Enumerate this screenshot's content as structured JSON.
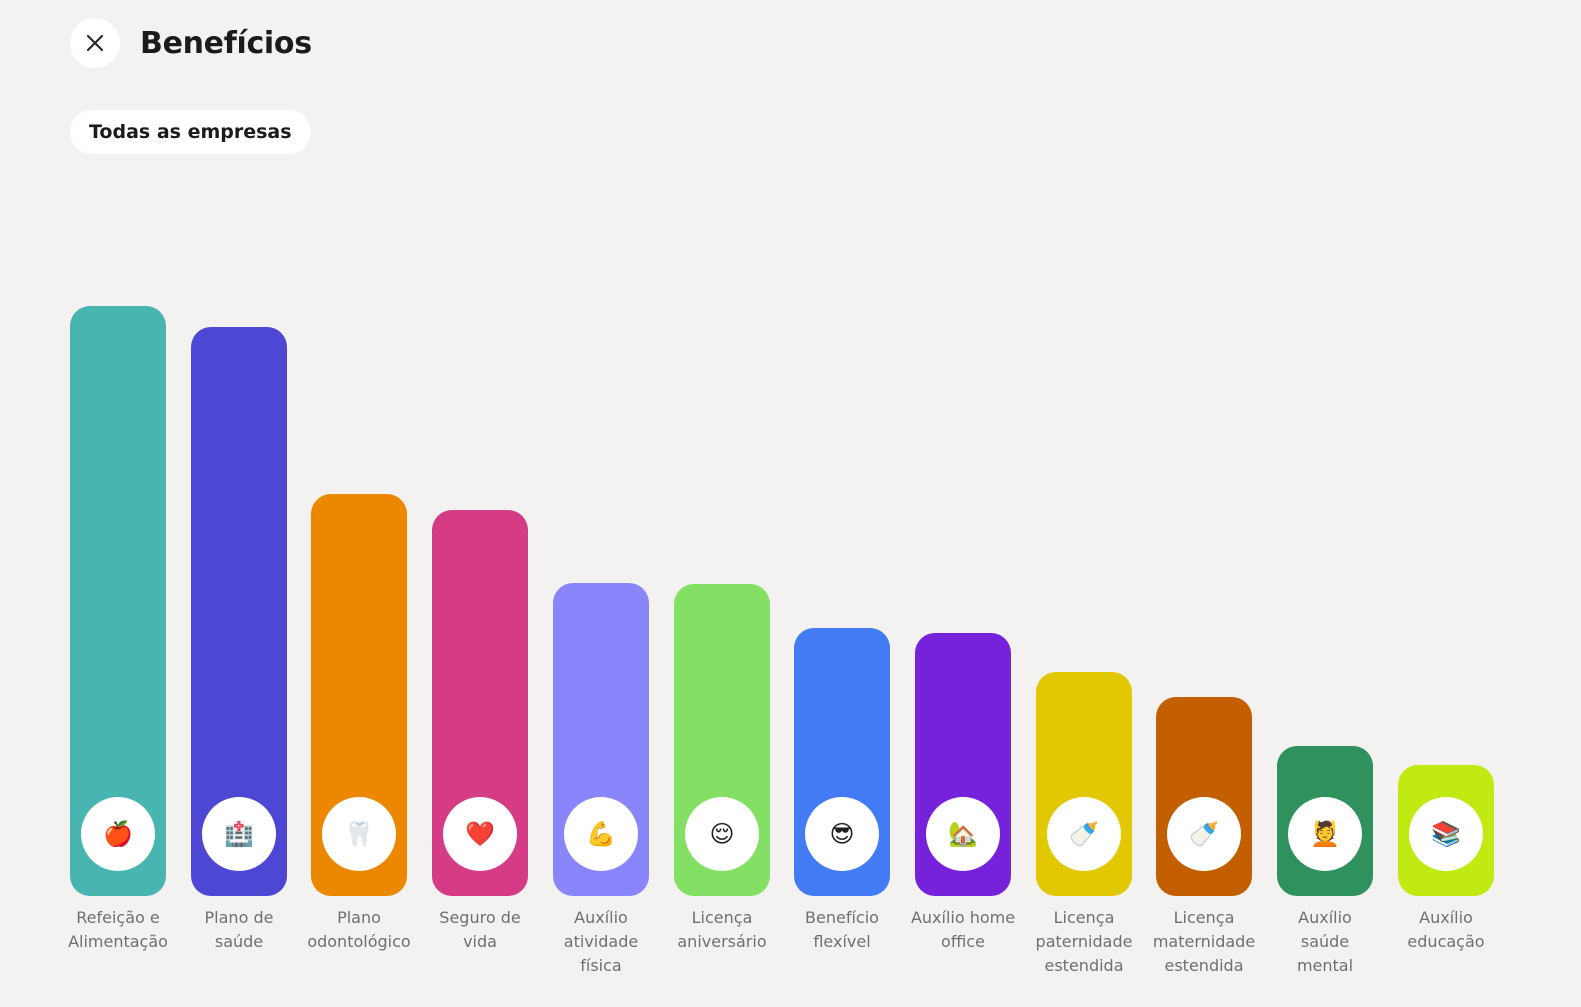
{
  "header": {
    "title": "Benefícios",
    "close_icon": "close-icon"
  },
  "filter": {
    "label": "Todas as empresas"
  },
  "chart_data": {
    "type": "bar",
    "title": "",
    "xlabel": "",
    "ylabel": "",
    "ylim": [
      0,
      100
    ],
    "grid": false,
    "categories": [
      "Refeição e\nAlimentação",
      "Plano de\nsaúde",
      "Plano\nodontológico",
      "Seguro de\nvida",
      "Auxílio\natividade\nfísica",
      "Licença\naniversário",
      "Benefício\nflexível",
      "Auxílio home\noffice",
      "Licença\npaternidade\nestendida",
      "Licença\nmaternidade\nestendida",
      "Auxílio\nsaúde\nmental",
      "Auxílio\neducação"
    ],
    "values": [
      100,
      96.5,
      68.1,
      65.4,
      53,
      52.8,
      45.4,
      44.5,
      38,
      33.7,
      25.4,
      22.2
    ],
    "colors": [
      "#49b5b0",
      "#4e47d3",
      "#ec8800",
      "#d53c85",
      "#8a85fb",
      "#84e065",
      "#437bf5",
      "#7622da",
      "#e2c800",
      "#c45f00",
      "#2e915e",
      "#c1ea12"
    ],
    "icons": [
      "🍎",
      "🏥",
      "🦷",
      "❤️",
      "💪",
      "😌",
      "😎",
      "🏡",
      "🍼",
      "🍼",
      "💆",
      "📚"
    ],
    "icon_names": [
      "apple-icon",
      "hospital-icon",
      "tooth-icon",
      "heart-icon",
      "flexed-biceps-icon",
      "relieved-face-icon",
      "sunglasses-face-icon",
      "house-garden-icon",
      "baby-bottle-icon",
      "baby-bottle-icon",
      "face-massage-icon",
      "books-icon"
    ]
  }
}
